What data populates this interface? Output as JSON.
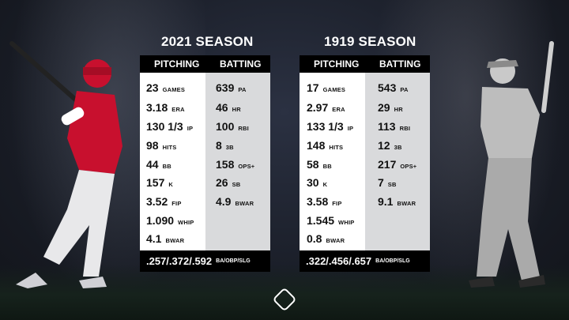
{
  "seasons": [
    {
      "title": "2021 SEASON",
      "pitching_header": "PITCHING",
      "batting_header": "BATTING",
      "pitching": [
        {
          "value": "23",
          "unit": "GAMES"
        },
        {
          "value": "3.18",
          "unit": "ERA"
        },
        {
          "value": "130 1/3",
          "unit": "IP"
        },
        {
          "value": "98",
          "unit": "HITS"
        },
        {
          "value": "44",
          "unit": "BB"
        },
        {
          "value": "157",
          "unit": "K"
        },
        {
          "value": "3.52",
          "unit": "FIP"
        },
        {
          "value": "1.090",
          "unit": "WHIP"
        },
        {
          "value": "4.1",
          "unit": "BWAR"
        }
      ],
      "batting": [
        {
          "value": "639",
          "unit": "PA"
        },
        {
          "value": "46",
          "unit": "HR"
        },
        {
          "value": "100",
          "unit": "RBI"
        },
        {
          "value": "8",
          "unit": "3B"
        },
        {
          "value": "158",
          "unit": "OPS+"
        },
        {
          "value": "26",
          "unit": "SB"
        },
        {
          "value": "4.9",
          "unit": "BWAR"
        }
      ],
      "slash_line": ".257/.372/.592",
      "slash_label": "BA/OBP/SLG"
    },
    {
      "title": "1919 SEASON",
      "pitching_header": "PITCHING",
      "batting_header": "BATTING",
      "pitching": [
        {
          "value": "17",
          "unit": "GAMES"
        },
        {
          "value": "2.97",
          "unit": "ERA"
        },
        {
          "value": "133 1/3",
          "unit": "IP"
        },
        {
          "value": "148",
          "unit": "HITS"
        },
        {
          "value": "58",
          "unit": "BB"
        },
        {
          "value": "30",
          "unit": "K"
        },
        {
          "value": "3.58",
          "unit": "FIP"
        },
        {
          "value": "1.545",
          "unit": "WHIP"
        },
        {
          "value": "0.8",
          "unit": "BWAR"
        }
      ],
      "batting": [
        {
          "value": "543",
          "unit": "PA"
        },
        {
          "value": "29",
          "unit": "HR"
        },
        {
          "value": "113",
          "unit": "RBI"
        },
        {
          "value": "12",
          "unit": "3B"
        },
        {
          "value": "217",
          "unit": "OPS+"
        },
        {
          "value": "7",
          "unit": "SB"
        },
        {
          "value": "9.1",
          "unit": "BWAR"
        }
      ],
      "slash_line": ".322/.456/.657",
      "slash_label": "BA/OBP/SLG"
    }
  ],
  "colors": {
    "background": "#1a1e28",
    "header_bar": "#000000",
    "pitching_box": "#ffffff",
    "batting_box": "#d9dadc",
    "angels_red": "#c8102e"
  },
  "icons": {
    "left_figure": "batter-2021-illustration",
    "right_figure": "batter-1919-illustration",
    "brand": "sporting-news-logo-icon"
  }
}
